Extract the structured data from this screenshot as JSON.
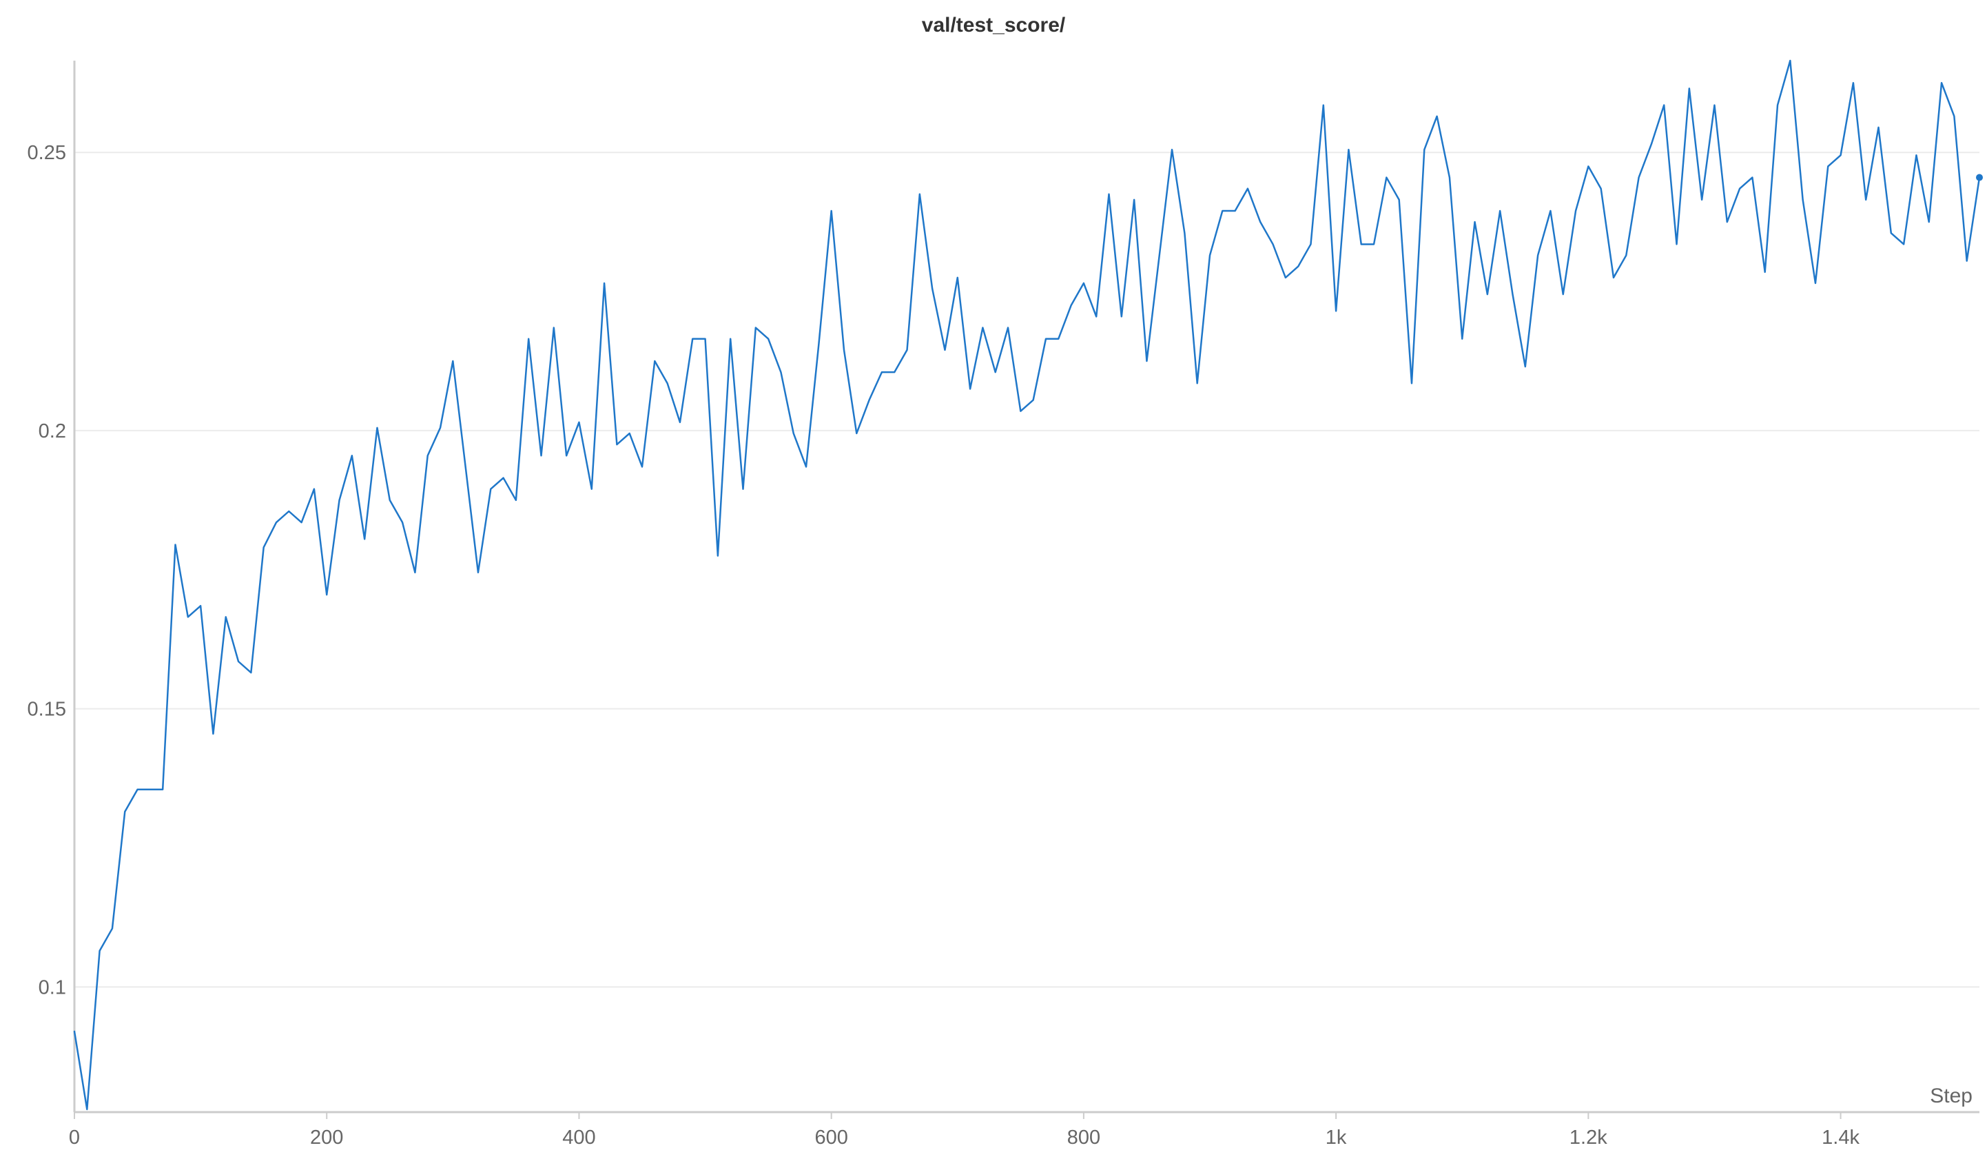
{
  "chart_data": {
    "type": "line",
    "title": "val/test_score/",
    "xlabel": "Step",
    "ylabel": "",
    "xlim": [
      0,
      1510
    ],
    "ylim": [
      0.0775,
      0.2665
    ],
    "x_ticks": [
      {
        "value": 0,
        "label": "0"
      },
      {
        "value": 200,
        "label": "200"
      },
      {
        "value": 400,
        "label": "400"
      },
      {
        "value": 600,
        "label": "600"
      },
      {
        "value": 800,
        "label": "800"
      },
      {
        "value": 1000,
        "label": "1k"
      },
      {
        "value": 1200,
        "label": "1.2k"
      },
      {
        "value": 1400,
        "label": "1.4k"
      }
    ],
    "y_ticks": [
      {
        "value": 0.1,
        "label": "0.1"
      },
      {
        "value": 0.15,
        "label": "0.15"
      },
      {
        "value": 0.2,
        "label": "0.2"
      },
      {
        "value": 0.25,
        "label": "0.25"
      }
    ],
    "grid": true,
    "series": [
      {
        "name": "val/test_score/",
        "color": "#1f77c9",
        "x": [
          0,
          10,
          20,
          30,
          40,
          50,
          60,
          70,
          80,
          90,
          100,
          110,
          120,
          130,
          140,
          150,
          160,
          170,
          180,
          190,
          200,
          210,
          220,
          230,
          240,
          250,
          260,
          270,
          280,
          290,
          300,
          310,
          320,
          330,
          340,
          350,
          360,
          370,
          380,
          390,
          400,
          410,
          420,
          430,
          440,
          450,
          460,
          470,
          480,
          490,
          500,
          510,
          520,
          530,
          540,
          550,
          560,
          570,
          580,
          590,
          600,
          610,
          620,
          630,
          640,
          650,
          660,
          670,
          680,
          690,
          700,
          710,
          720,
          730,
          740,
          750,
          760,
          770,
          780,
          790,
          800,
          810,
          820,
          830,
          840,
          850,
          860,
          870,
          880,
          890,
          900,
          910,
          920,
          930,
          940,
          950,
          960,
          970,
          980,
          990,
          1000,
          1010,
          1020,
          1030,
          1040,
          1050,
          1060,
          1070,
          1080,
          1090,
          1100,
          1110,
          1120,
          1130,
          1140,
          1150,
          1160,
          1170,
          1180,
          1190,
          1200,
          1210,
          1220,
          1230,
          1240,
          1250,
          1260,
          1270,
          1280,
          1290,
          1300,
          1310,
          1320,
          1330,
          1340,
          1350,
          1360,
          1370,
          1380,
          1390,
          1400,
          1410,
          1420,
          1430,
          1440,
          1450,
          1460,
          1470,
          1480,
          1490,
          1500,
          1510
        ],
        "values": [
          0.092,
          0.078,
          0.1065,
          0.1105,
          0.1315,
          0.1355,
          0.1355,
          0.1355,
          0.1795,
          0.1665,
          0.1685,
          0.1455,
          0.1665,
          0.1585,
          0.1565,
          0.179,
          0.1835,
          0.1855,
          0.1835,
          0.1895,
          0.1705,
          0.1875,
          0.1955,
          0.1805,
          0.2005,
          0.1875,
          0.1835,
          0.1745,
          0.1955,
          0.2005,
          0.2125,
          0.1935,
          0.1745,
          0.1895,
          0.1915,
          0.1875,
          0.2165,
          0.1955,
          0.2185,
          0.1955,
          0.2015,
          0.1895,
          0.2265,
          0.1975,
          0.1995,
          0.1935,
          0.2125,
          0.2085,
          0.2015,
          0.2165,
          0.2165,
          0.1775,
          0.2165,
          0.1895,
          0.2185,
          0.2165,
          0.2105,
          0.1995,
          0.1935,
          0.2155,
          0.2395,
          0.2145,
          0.1995,
          0.2055,
          0.2105,
          0.2105,
          0.2145,
          0.2425,
          0.2255,
          0.2145,
          0.2275,
          0.2075,
          0.2185,
          0.2105,
          0.2185,
          0.2035,
          0.2055,
          0.2165,
          0.2165,
          0.2225,
          0.2265,
          0.2205,
          0.2425,
          0.2205,
          0.2415,
          0.2125,
          0.2315,
          0.2505,
          0.2355,
          0.2085,
          0.2315,
          0.2395,
          0.2395,
          0.2435,
          0.2375,
          0.2335,
          0.2275,
          0.2295,
          0.2335,
          0.2585,
          0.2215,
          0.2505,
          0.2335,
          0.2335,
          0.2455,
          0.2415,
          0.2085,
          0.2505,
          0.2565,
          0.2455,
          0.2165,
          0.2375,
          0.2245,
          0.2395,
          0.2245,
          0.2115,
          0.2315,
          0.2395,
          0.2245,
          0.2395,
          0.2475,
          0.2435,
          0.2275,
          0.2315,
          0.2455,
          0.2515,
          0.2585,
          0.2335,
          0.2615,
          0.2415,
          0.2585,
          0.2375,
          0.2435,
          0.2455,
          0.2285,
          0.2585,
          0.2665,
          0.2415,
          0.2265,
          0.2475,
          0.2495,
          0.2625,
          0.2415,
          0.2545,
          0.2355,
          0.2335,
          0.2495,
          0.2375,
          0.2625,
          0.2565,
          0.2305,
          0.2455
        ]
      }
    ]
  }
}
